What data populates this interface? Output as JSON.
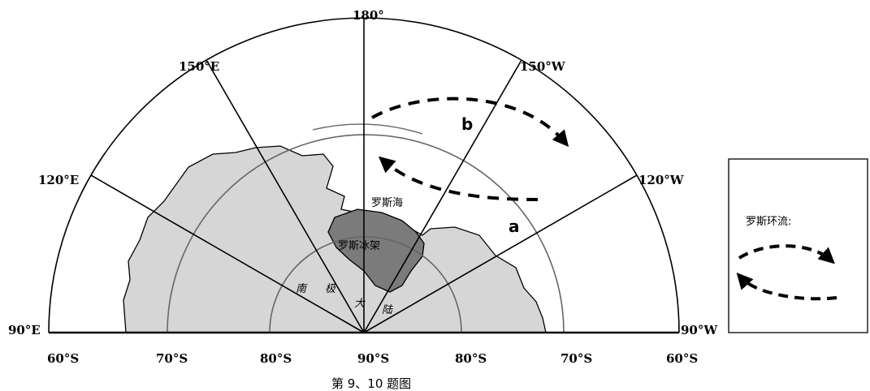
{
  "map": {
    "longitudes": {
      "deg180": "180°",
      "deg150E": "150°E",
      "deg150W": "150°W",
      "deg120E": "120°E",
      "deg120W": "120°W",
      "deg90E": "90°E",
      "deg90W": "90°W"
    },
    "latitudes": {
      "left60": "60°S",
      "left70": "70°S",
      "left80": "80°S",
      "center90": "90°S",
      "right80": "80°S",
      "right70": "70°S",
      "right60": "60°S"
    },
    "places": {
      "ross_sea": "罗斯海",
      "ross_ice_shelf": "罗斯冰架",
      "antarctica_chars": [
        "南",
        "极",
        "大",
        "陆"
      ]
    },
    "points": {
      "a": "a",
      "b": "b"
    }
  },
  "legend": {
    "title": "罗斯环流:"
  },
  "caption": "第 9、10 题图"
}
